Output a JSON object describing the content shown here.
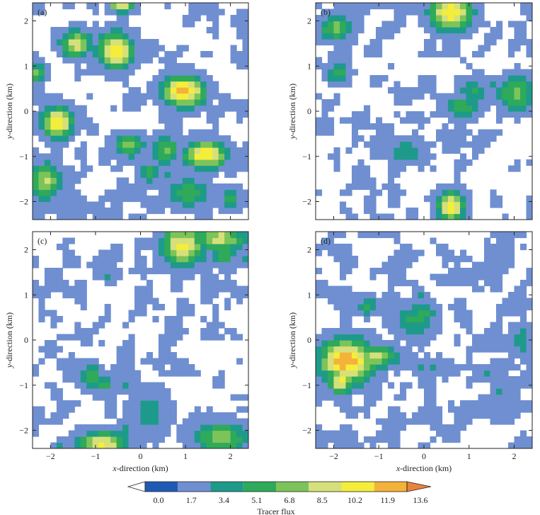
{
  "chart_data": {
    "type": "heatmap",
    "title": "",
    "xlabel_prefix": "x",
    "xlabel_rest": "-direction (km)",
    "ylabel_prefix": "y",
    "ylabel_rest": "-direction (km)",
    "xlim": [
      -2.4,
      2.4
    ],
    "ylim": [
      -2.4,
      2.4
    ],
    "xticks": [
      -2,
      -1,
      0,
      1,
      2
    ],
    "yticks": [
      -2,
      -1,
      0,
      1,
      2
    ],
    "xtick_labels": [
      "−2",
      "−1",
      "0",
      "1",
      "2"
    ],
    "ytick_labels": [
      "−2",
      "−1",
      "0",
      "1",
      "2"
    ],
    "colorbar": {
      "label": "Tracer flux",
      "levels": [
        "0.0",
        "1.7",
        "3.4",
        "5.1",
        "6.8",
        "8.5",
        "10.2",
        "11.9",
        "13.6"
      ],
      "colors": [
        "#ffffff",
        "#1f5bb5",
        "#6f8fd1",
        "#1e9a8a",
        "#2eaa5a",
        "#7cc45a",
        "#d6e07a",
        "#f4ee3a",
        "#f4b23a",
        "#e8843c"
      ],
      "extend": "both"
    },
    "panels": [
      {
        "tag": "(a)",
        "hotspots": [
          {
            "x": -1.45,
            "y": 1.5,
            "peak": 9.5,
            "rx": 0.25,
            "ry": 0.22
          },
          {
            "x": -0.55,
            "y": 1.35,
            "peak": 11.5,
            "rx": 0.3,
            "ry": 0.3
          },
          {
            "x": -0.42,
            "y": 2.35,
            "peak": 10.5,
            "rx": 0.2,
            "ry": 0.12
          },
          {
            "x": 0.95,
            "y": 0.45,
            "peak": 13.0,
            "rx": 0.35,
            "ry": 0.25
          },
          {
            "x": -2.3,
            "y": 0.85,
            "peak": 8.5,
            "rx": 0.15,
            "ry": 0.15
          },
          {
            "x": -1.85,
            "y": -0.25,
            "peak": 12.0,
            "rx": 0.25,
            "ry": 0.25
          },
          {
            "x": -0.25,
            "y": -0.75,
            "peak": 7.5,
            "rx": 0.25,
            "ry": 0.2
          },
          {
            "x": 0.55,
            "y": -0.85,
            "peak": 6.8,
            "rx": 0.25,
            "ry": 0.25
          },
          {
            "x": 1.45,
            "y": -0.95,
            "peak": 12.0,
            "rx": 0.35,
            "ry": 0.22
          },
          {
            "x": -2.1,
            "y": -1.55,
            "peak": 9.0,
            "rx": 0.25,
            "ry": 0.3
          },
          {
            "x": 0.2,
            "y": -1.35,
            "peak": 6.0,
            "rx": 0.2,
            "ry": 0.2
          },
          {
            "x": 1.05,
            "y": -1.8,
            "peak": 6.5,
            "rx": 0.35,
            "ry": 0.25
          },
          {
            "x": 2.0,
            "y": -1.95,
            "peak": 5.5,
            "rx": 0.2,
            "ry": 0.2
          }
        ]
      },
      {
        "tag": "(b)",
        "hotspots": [
          {
            "x": 0.6,
            "y": 2.2,
            "peak": 11.5,
            "rx": 0.35,
            "ry": 0.3
          },
          {
            "x": -1.95,
            "y": 1.85,
            "peak": 7.5,
            "rx": 0.3,
            "ry": 0.22
          },
          {
            "x": -1.9,
            "y": 0.85,
            "peak": 6.0,
            "rx": 0.2,
            "ry": 0.2
          },
          {
            "x": 2.05,
            "y": 0.4,
            "peak": 7.5,
            "rx": 0.3,
            "ry": 0.3
          },
          {
            "x": 1.1,
            "y": 0.45,
            "peak": 5.5,
            "rx": 0.25,
            "ry": 0.2
          },
          {
            "x": 0.85,
            "y": 0.1,
            "peak": 6.5,
            "rx": 0.3,
            "ry": 0.2
          },
          {
            "x": 0.6,
            "y": -2.1,
            "peak": 11.5,
            "rx": 0.22,
            "ry": 0.25
          },
          {
            "x": -0.4,
            "y": -0.9,
            "peak": 5.0,
            "rx": 0.3,
            "ry": 0.2
          }
        ]
      },
      {
        "tag": "(c)",
        "hotspots": [
          {
            "x": 0.95,
            "y": 2.1,
            "peak": 10.5,
            "rx": 0.35,
            "ry": 0.35
          },
          {
            "x": 1.75,
            "y": 2.25,
            "peak": 9.0,
            "rx": 0.45,
            "ry": 0.2
          },
          {
            "x": 1.85,
            "y": 1.9,
            "peak": 6.5,
            "rx": 0.2,
            "ry": 0.2
          },
          {
            "x": -1.1,
            "y": -0.8,
            "peak": 6.5,
            "rx": 0.2,
            "ry": 0.2
          },
          {
            "x": -0.8,
            "y": -0.95,
            "peak": 6.0,
            "rx": 0.15,
            "ry": 0.15
          },
          {
            "x": -0.85,
            "y": -2.3,
            "peak": 10.5,
            "rx": 0.4,
            "ry": 0.2
          },
          {
            "x": 1.8,
            "y": -2.15,
            "peak": 8.0,
            "rx": 0.45,
            "ry": 0.25
          },
          {
            "x": 0.2,
            "y": -1.6,
            "peak": 4.5,
            "rx": 0.35,
            "ry": 0.4
          }
        ]
      },
      {
        "tag": "(d)",
        "hotspots": [
          {
            "x": -1.7,
            "y": -0.45,
            "peak": 13.0,
            "rx": 0.45,
            "ry": 0.35
          },
          {
            "x": -1.1,
            "y": -0.35,
            "peak": 9.0,
            "rx": 0.4,
            "ry": 0.2
          },
          {
            "x": -1.85,
            "y": -0.9,
            "peak": 11.0,
            "rx": 0.2,
            "ry": 0.2
          },
          {
            "x": -0.2,
            "y": 0.45,
            "peak": 5.5,
            "rx": 0.35,
            "ry": 0.3
          },
          {
            "x": -1.25,
            "y": 0.75,
            "peak": 6.0,
            "rx": 0.2,
            "ry": 0.15
          },
          {
            "x": 0.0,
            "y": 0.6,
            "peak": 6.5,
            "rx": 0.2,
            "ry": 0.2
          },
          {
            "x": 2.15,
            "y": 0.0,
            "peak": 5.0,
            "rx": 0.2,
            "ry": 0.25
          },
          {
            "x": 0.2,
            "y": -0.6,
            "peak": 4.8,
            "rx": 0.15,
            "ry": 0.15
          }
        ]
      }
    ]
  }
}
